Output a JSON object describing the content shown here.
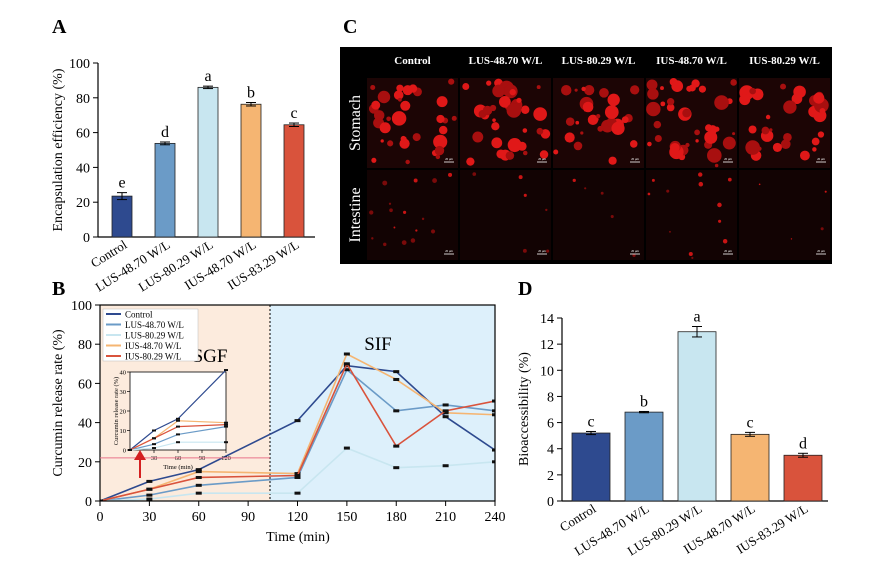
{
  "panels": {
    "A": {
      "label": "A"
    },
    "B": {
      "label": "B"
    },
    "C": {
      "label": "C"
    },
    "D": {
      "label": "D"
    }
  },
  "chart_data": [
    {
      "panel": "A",
      "type": "bar",
      "categories": [
        "Control",
        "LUS-48.70 W/L",
        "LUS-80.29 W/L",
        "IUS-48.70 W/L",
        "IUS-83.29 W/L"
      ],
      "values": [
        23.5,
        53.8,
        86.0,
        76.3,
        64.5
      ],
      "errors": [
        2.0,
        0.8,
        0.7,
        1.0,
        1.0
      ],
      "letters": [
        "e",
        "d",
        "a",
        "b",
        "c"
      ],
      "colors": [
        "#2e4a8f",
        "#6b9bc7",
        "#c8e6f0",
        "#f5b572",
        "#d9533c"
      ],
      "ylabel": "Encapsulation efficiency (%)",
      "ylim": [
        0,
        100
      ],
      "yticks": [
        "0",
        "20",
        "40",
        "60",
        "80",
        "100"
      ]
    },
    {
      "panel": "B",
      "type": "line",
      "xlabel": "Time (min)",
      "ylabel": "Curcumin release rate (%)",
      "xlim": [
        0,
        240
      ],
      "ylim": [
        0,
        100
      ],
      "xticks": [
        "0",
        "30",
        "60",
        "90",
        "120",
        "150",
        "180",
        "210",
        "240"
      ],
      "yticks": [
        "0",
        "20",
        "40",
        "60",
        "80",
        "100"
      ],
      "x": [
        0,
        30,
        60,
        120,
        150,
        180,
        210,
        240
      ],
      "series": [
        {
          "name": "Control",
          "color": "#2e4a8f",
          "values": [
            0,
            10,
            16,
            41,
            69,
            66,
            43,
            26
          ]
        },
        {
          "name": "LUS-48.70 W/L",
          "color": "#6b9bc7",
          "values": [
            0,
            3,
            8,
            12,
            67,
            46,
            49,
            46
          ]
        },
        {
          "name": "LUS-80.29 W/L",
          "color": "#c8e6f0",
          "values": [
            0,
            1,
            4,
            4,
            27,
            17,
            18,
            20
          ]
        },
        {
          "name": "IUS-48.70 W/L",
          "color": "#f5b572",
          "values": [
            0,
            6,
            15,
            14,
            75,
            62,
            45,
            44
          ]
        },
        {
          "name": "IUS-80.29 W/L",
          "color": "#d9533c",
          "values": [
            0,
            6,
            12,
            13,
            70,
            28,
            46,
            51
          ]
        }
      ],
      "phase_split": 120,
      "phase_labels": {
        "left": "SGF",
        "right": "SIF"
      },
      "zone_colors": {
        "left": "#fcebdd",
        "right": "#ddf0fb"
      },
      "reference_y": 22,
      "inset": {
        "xlim": [
          0,
          120
        ],
        "ylim": [
          0,
          40
        ],
        "xticks": [
          "30",
          "60",
          "90",
          "120"
        ],
        "yticks": [
          "0",
          "10",
          "20",
          "30",
          "40"
        ],
        "xlabel": "Time (min)",
        "ylabel": "Curcumin release rate (%)"
      }
    },
    {
      "panel": "C",
      "type": "table",
      "columns": [
        "Control",
        "LUS-48.70 W/L",
        "LUS-80.29 W/L",
        "IUS-48.70 W/L",
        "IUS-80.29 W/L"
      ],
      "rows": [
        "Stomach",
        "Intestine"
      ],
      "scale_bar": "20 μm"
    },
    {
      "panel": "D",
      "type": "bar",
      "categories": [
        "Control",
        "LUS-48.70 W/L",
        "LUS-80.29 W/L",
        "IUS-48.70 W/L",
        "IUS-83.29 W/L"
      ],
      "values": [
        5.2,
        6.8,
        12.95,
        5.1,
        3.5
      ],
      "errors": [
        0.12,
        0.05,
        0.4,
        0.15,
        0.15
      ],
      "letters": [
        "c",
        "b",
        "a",
        "c",
        "d"
      ],
      "colors": [
        "#2e4a8f",
        "#6b9bc7",
        "#c8e6f0",
        "#f5b572",
        "#d9533c"
      ],
      "ylabel": "Bioaccessibility (%)",
      "ylim": [
        0,
        14
      ],
      "yticks": [
        "0",
        "2",
        "4",
        "6",
        "8",
        "10",
        "12",
        "14"
      ]
    }
  ]
}
